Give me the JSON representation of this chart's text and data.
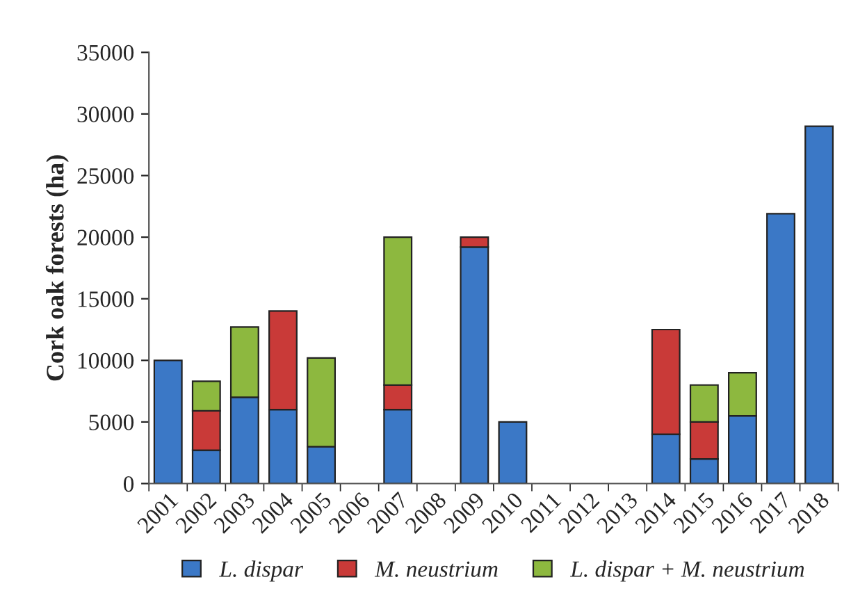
{
  "chart_data": {
    "type": "bar",
    "stacked": true,
    "ylabel": "Cork oak forests (ha)",
    "categories": [
      "2001",
      "2002",
      "2003",
      "2004",
      "2005",
      "2006",
      "2007",
      "2008",
      "2009",
      "2010",
      "2011",
      "2012",
      "2013",
      "2014",
      "2015",
      "2016",
      "2017",
      "2018"
    ],
    "series": [
      {
        "name": "L. dispar",
        "color": "#3b78c6",
        "values": [
          10000,
          2700,
          7000,
          6000,
          3000,
          null,
          6000,
          null,
          19200,
          5000,
          null,
          null,
          null,
          4000,
          2000,
          5500,
          21900,
          29000
        ]
      },
      {
        "name": "M. neustrium",
        "color": "#c93a38",
        "values": [
          null,
          3200,
          null,
          8000,
          null,
          null,
          2000,
          null,
          800,
          null,
          null,
          null,
          null,
          8500,
          3000,
          null,
          null,
          null
        ]
      },
      {
        "name": "L. dispar + M. neustrium",
        "color": "#8db83f",
        "values": [
          null,
          2400,
          5700,
          null,
          7200,
          null,
          12000,
          null,
          null,
          null,
          null,
          null,
          null,
          null,
          3000,
          3500,
          null,
          null
        ]
      }
    ],
    "ylim": [
      0,
      35000
    ],
    "yticks": [
      0,
      5000,
      10000,
      15000,
      20000,
      25000,
      30000,
      35000
    ],
    "grid": false,
    "legend": "bottom"
  }
}
